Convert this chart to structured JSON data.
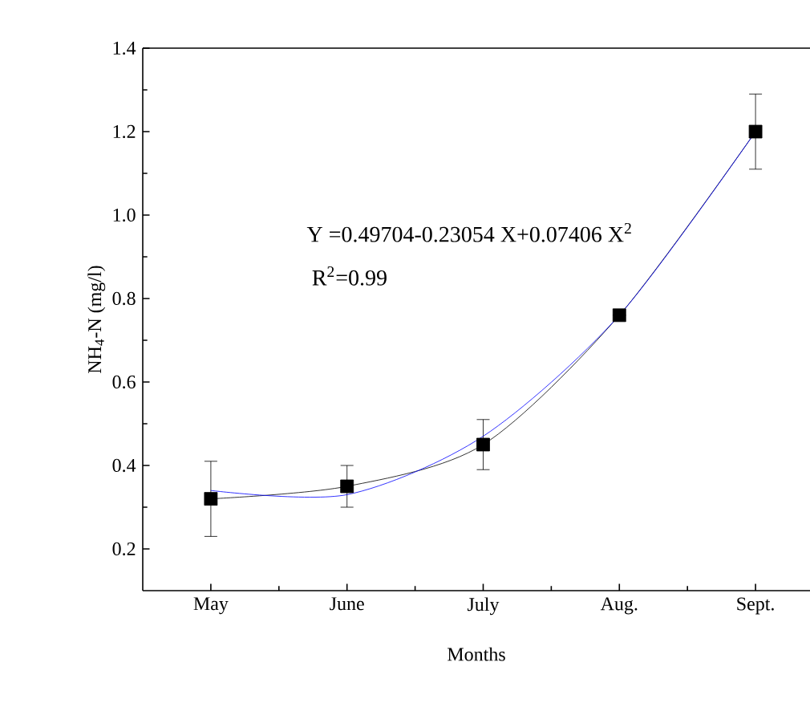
{
  "chart_data": {
    "type": "line",
    "xlabel": "Months",
    "ylabel": "NH$_{4}$-N (mg/l)",
    "categories": [
      "May",
      "June",
      "July",
      "Aug.",
      "Sept."
    ],
    "ylim": [
      0.1,
      1.4
    ],
    "yticks": [
      0.2,
      0.4,
      0.6,
      0.8,
      {
        "value": 1.0,
        "label": "1.0"
      },
      1.2,
      1.4
    ],
    "grid": false,
    "series": [
      {
        "color": "#000000",
        "values": [
          0.32,
          0.35,
          0.45,
          0.76,
          1.2
        ],
        "errors": [
          0.09,
          0.05,
          0.06,
          null,
          0.09
        ],
        "marker": "square",
        "line_style": "solid"
      },
      {
        "color": "#0000ff",
        "values": [
          0.34,
          0.33,
          0.47,
          0.76,
          1.2
        ],
        "marker": "none",
        "line_style": "solid"
      }
    ],
    "annotations": [
      "Y =0.49704-0.23054 X+0.07406 X$^{2}$",
      "R$^{2}$=0.99"
    ]
  }
}
